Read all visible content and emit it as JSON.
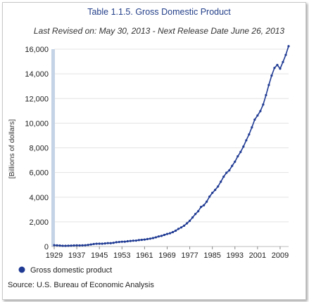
{
  "chart_data": {
    "type": "line",
    "title": "Table 1.1.5. Gross Domestic Product",
    "subtitle": "Last Revised on: May 30, 2013 - Next Release Date June 26, 2013",
    "xlabel": "",
    "ylabel": "[Billions of dollars]",
    "xlim": [
      1929,
      2012
    ],
    "ylim": [
      0,
      16000
    ],
    "x_ticks": [
      "1929",
      "1937",
      "1945",
      "1953",
      "1961",
      "1969",
      "1977",
      "1985",
      "1993",
      "2001",
      "2009"
    ],
    "y_ticks": [
      "0",
      "2,000",
      "4,000",
      "6,000",
      "8,000",
      "10,000",
      "12,000",
      "14,000",
      "16,000"
    ],
    "grid": true,
    "legend_position": "bottom-left",
    "series": [
      {
        "name": "Gross domestic product",
        "color": "#1f3a93",
        "x": [
          1929,
          1930,
          1931,
          1932,
          1933,
          1934,
          1935,
          1936,
          1937,
          1938,
          1939,
          1940,
          1941,
          1942,
          1943,
          1944,
          1945,
          1946,
          1947,
          1948,
          1949,
          1950,
          1951,
          1952,
          1953,
          1954,
          1955,
          1956,
          1957,
          1958,
          1959,
          1960,
          1961,
          1962,
          1963,
          1964,
          1965,
          1966,
          1967,
          1968,
          1969,
          1970,
          1971,
          1972,
          1973,
          1974,
          1975,
          1976,
          1977,
          1978,
          1979,
          1980,
          1981,
          1982,
          1983,
          1984,
          1985,
          1986,
          1987,
          1988,
          1989,
          1990,
          1991,
          1992,
          1993,
          1994,
          1995,
          1996,
          1997,
          1998,
          1999,
          2000,
          2001,
          2002,
          2003,
          2004,
          2005,
          2006,
          2007,
          2008,
          2009,
          2010,
          2011,
          2012
        ],
        "values": [
          105,
          92,
          77,
          60,
          57,
          67,
          74,
          85,
          93,
          87,
          93,
          103,
          129,
          166,
          203,
          225,
          228,
          228,
          250,
          275,
          272,
          300,
          347,
          367,
          389,
          391,
          425,
          449,
          474,
          481,
          522,
          543,
          563,
          605,
          638,
          686,
          744,
          815,
          862,
          943,
          1020,
          1076,
          1168,
          1282,
          1429,
          1549,
          1689,
          1878,
          2086,
          2357,
          2632,
          2862,
          3211,
          3345,
          3638,
          4041,
          4347,
          4590,
          4870,
          5253,
          5658,
          5980,
          6174,
          6539,
          6879,
          7309,
          7664,
          8100,
          8609,
          9089,
          9661,
          10285,
          10622,
          10978,
          11511,
          12275,
          13094,
          13856,
          14478,
          14719,
          14419,
          14958,
          15534,
          16245
        ]
      }
    ],
    "legend": [
      "Gross domestic product"
    ],
    "source": "Source: U.S. Bureau of Economic Analysis"
  }
}
